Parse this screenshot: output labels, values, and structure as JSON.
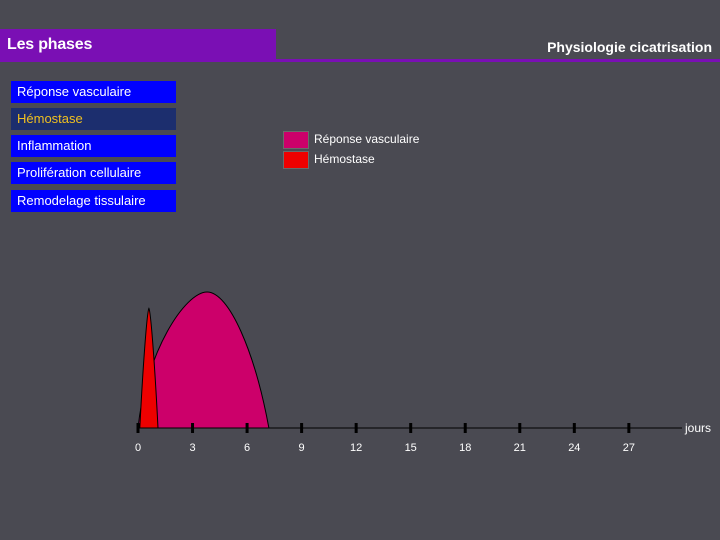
{
  "header": {
    "title": "Les phases",
    "subtitle": "Physiologie cicatrisation"
  },
  "phases": [
    {
      "label": "Réponse vasculaire",
      "state": "normal"
    },
    {
      "label": "Hémostase",
      "state": "active"
    },
    {
      "label": "Inflammation",
      "state": "normal"
    },
    {
      "label": "Prolifération cellulaire",
      "state": "normal"
    },
    {
      "label": "Remodelage tissulaire",
      "state": "normal"
    }
  ],
  "legend": [
    {
      "label": "Réponse vasculaire",
      "color": "#cc006a"
    },
    {
      "label": "Hémostase",
      "color": "#ee0000"
    }
  ],
  "chart_data": {
    "type": "area",
    "x_ticks": [
      "0",
      "3",
      "6",
      "9",
      "12",
      "15",
      "18",
      "21",
      "24",
      "27"
    ],
    "x_unit": "jours",
    "xlim": [
      0,
      30
    ],
    "series": [
      {
        "name": "Réponse vasculaire",
        "color": "#cc006a",
        "start": 0,
        "peak": 3.8,
        "end": 7.2,
        "height": 1.0
      },
      {
        "name": "Hémostase",
        "color": "#ee0000",
        "start": 0.1,
        "peak": 0.6,
        "end": 1.1,
        "height": 0.88
      }
    ]
  }
}
